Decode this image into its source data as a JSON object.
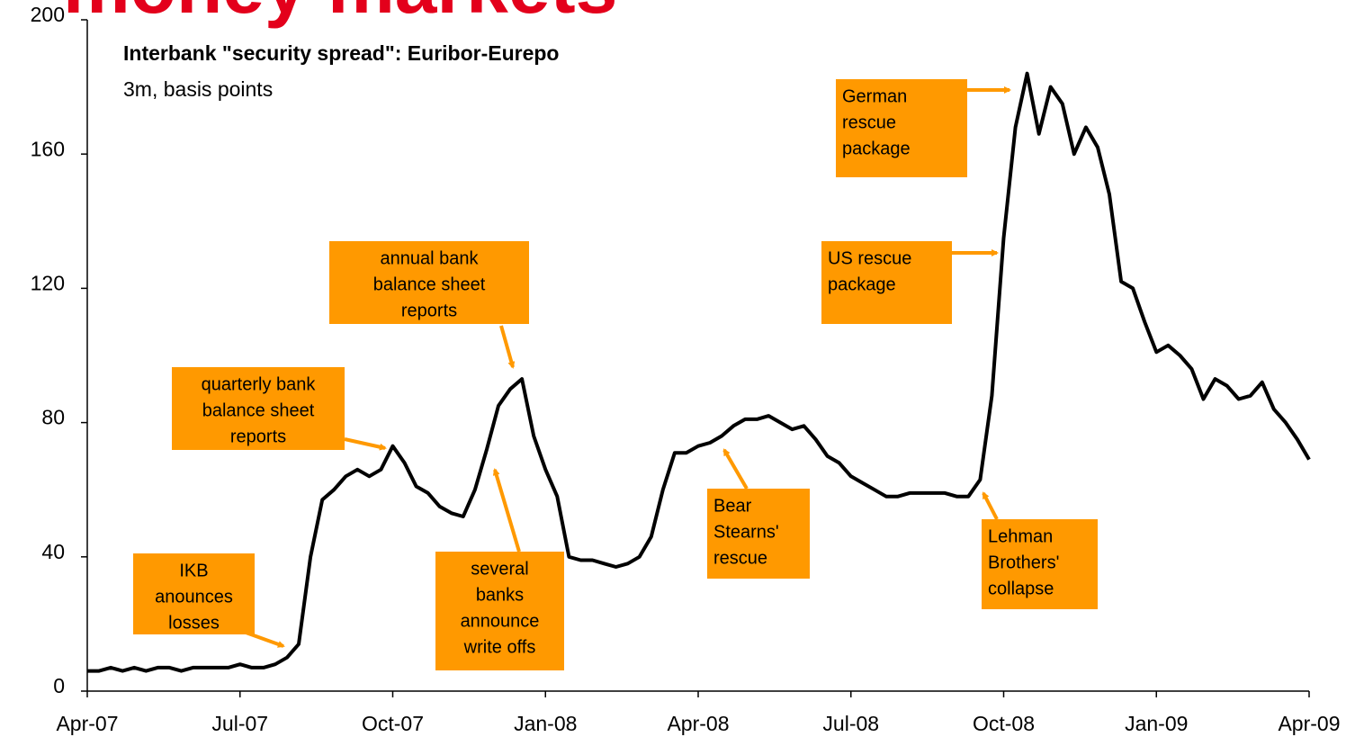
{
  "header": "money markets",
  "chart_data": {
    "type": "line",
    "title": "Interbank \"security spread\": Euribor-Eurepo",
    "subtitle": "3m, basis points",
    "categories": [
      "Apr-07",
      null,
      null,
      null,
      null,
      null,
      null,
      null,
      null,
      null,
      null,
      null,
      null,
      "Jul-07",
      null,
      null,
      null,
      null,
      null,
      null,
      null,
      null,
      null,
      null,
      null,
      null,
      "Oct-07",
      null,
      null,
      null,
      null,
      null,
      null,
      null,
      null,
      null,
      null,
      null,
      null,
      "Jan-08",
      null,
      null,
      null,
      null,
      null,
      null,
      null,
      null,
      null,
      null,
      null,
      null,
      "Apr-08",
      null,
      null,
      null,
      null,
      null,
      null,
      null,
      null,
      null,
      null,
      null,
      null,
      "Jul-08",
      null,
      null,
      null,
      null,
      null,
      null,
      null,
      null,
      null,
      null,
      null,
      null,
      "Oct-08",
      null,
      null,
      null,
      null,
      null,
      null,
      null,
      null,
      null,
      null,
      null,
      null,
      "Jan-09",
      null,
      null,
      null,
      null,
      null,
      null,
      null,
      null,
      null,
      null,
      null,
      null,
      "Apr-09"
    ],
    "series": [
      {
        "color": "#000000",
        "values": [
          6,
          6,
          7,
          6,
          7,
          6,
          7,
          7,
          6,
          7,
          7,
          7,
          7,
          8,
          7,
          7,
          8,
          10,
          14,
          40,
          57,
          60,
          64,
          66,
          64,
          66,
          73,
          68,
          61,
          59,
          55,
          53,
          52,
          60,
          72,
          85,
          90,
          93,
          76,
          66,
          58,
          40,
          39,
          39,
          38,
          37,
          38,
          40,
          46,
          60,
          71,
          71,
          73,
          74,
          76,
          79,
          81,
          81,
          82,
          80,
          78,
          79,
          75,
          70,
          68,
          64,
          62,
          60,
          58,
          58,
          59,
          59,
          59,
          59,
          58,
          58,
          63,
          88,
          135,
          168,
          184,
          166,
          180,
          175,
          160,
          168,
          162,
          148,
          122,
          120,
          110,
          101,
          103,
          100,
          96,
          87,
          93,
          91,
          87,
          88,
          92,
          84,
          80,
          75,
          69
        ]
      }
    ],
    "ylim": [
      0,
      200
    ],
    "yticks": [
      0,
      40,
      80,
      120,
      160,
      200
    ],
    "annotations": [
      {
        "lines": [
          "IKB",
          "anounces",
          "losses"
        ],
        "color": "#ff9900"
      },
      {
        "lines": [
          "quarterly bank",
          "balance sheet",
          "reports"
        ],
        "color": "#ff9900"
      },
      {
        "lines": [
          "annual bank",
          "balance sheet",
          "reports"
        ],
        "color": "#ff9900"
      },
      {
        "lines": [
          "several",
          "banks",
          "announce",
          "write offs"
        ],
        "color": "#ff9900"
      },
      {
        "lines": [
          "Bear",
          "Stearns'",
          "rescue"
        ],
        "color": "#ff9900"
      },
      {
        "lines": [
          "Lehman",
          "Brothers'",
          "collapse"
        ],
        "color": "#ff9900"
      },
      {
        "lines": [
          "US rescue",
          "package"
        ],
        "color": "#ff9900"
      },
      {
        "lines": [
          "German",
          "rescue",
          "package"
        ],
        "color": "#ff9900"
      }
    ]
  }
}
